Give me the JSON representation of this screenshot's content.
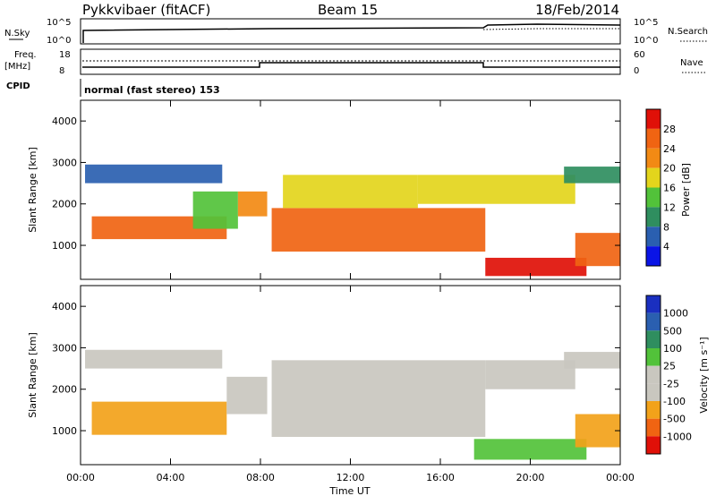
{
  "header": {
    "title": "Pykkvibaer (fitACF)",
    "beam": "Beam 15",
    "date": "18/Feb/2014"
  },
  "top_panels": {
    "nsky_label": "N.Sky",
    "nsky_ticks": [
      "10^5",
      "10^0"
    ],
    "nsearch_label": "N.Search",
    "nsearch_ticks": [
      "10^5",
      "10^0"
    ],
    "freq_label_line1": "Freq.",
    "freq_label_line2": "[MHz]",
    "freq_ticks": [
      "18",
      "8"
    ],
    "nave_label": "Nave",
    "nave_ticks": [
      "60",
      "0"
    ],
    "cpid_label": "CPID",
    "cpid_text": "normal (fast stereo) 153"
  },
  "colors": {
    "power_scale": [
      "#0a14e6",
      "#2a5fb0",
      "#2f8e5f",
      "#52c23a",
      "#e3d51c",
      "#f28a14",
      "#f06412",
      "#e01008"
    ],
    "velocity_scale": [
      "#e01008",
      "#f06412",
      "#f2a21a",
      "#c9c7bf",
      "#c9c7bf",
      "#52c23a",
      "#2f8e5f",
      "#2a5fb0",
      "#1a2fc0"
    ]
  },
  "chart_data": [
    {
      "type": "heatmap",
      "name": "power",
      "ylabel": "Slant Range [km]",
      "ylim": [
        180,
        4500
      ],
      "yticks": [
        "1000",
        "2000",
        "3000",
        "4000"
      ],
      "colorbar_label": "Power [dB]",
      "colorbar_ticks": [
        "4",
        "8",
        "12",
        "16",
        "20",
        "24",
        "28"
      ],
      "regions": [
        {
          "t0": 0.2,
          "t1": 6.3,
          "r0": 2500,
          "r1": 2950,
          "value": 6
        },
        {
          "t0": 0.5,
          "t1": 6.5,
          "r0": 1150,
          "r1": 1700,
          "value": 27
        },
        {
          "t0": 5.0,
          "t1": 7.0,
          "r0": 1400,
          "r1": 2300,
          "value": 14
        },
        {
          "t0": 7.0,
          "t1": 8.3,
          "r0": 1700,
          "r1": 2300,
          "value": 22
        },
        {
          "t0": 8.5,
          "t1": 18.0,
          "r0": 850,
          "r1": 1900,
          "value": 27
        },
        {
          "t0": 9.0,
          "t1": 15.0,
          "r0": 1900,
          "r1": 2700,
          "value": 16
        },
        {
          "t0": 15.0,
          "t1": 22.0,
          "r0": 2000,
          "r1": 2700,
          "value": 17
        },
        {
          "t0": 18.0,
          "t1": 22.5,
          "r0": 260,
          "r1": 700,
          "value": 28
        },
        {
          "t0": 22.0,
          "t1": 24.0,
          "r0": 500,
          "r1": 1300,
          "value": 27
        },
        {
          "t0": 21.5,
          "t1": 24.0,
          "r0": 2500,
          "r1": 2900,
          "value": 8
        }
      ]
    },
    {
      "type": "heatmap",
      "name": "velocity",
      "ylabel": "Slant Range [km]",
      "ylim": [
        180,
        4500
      ],
      "yticks": [
        "1000",
        "2000",
        "3000",
        "4000"
      ],
      "colorbar_label": "Velocity [m s⁻¹]",
      "colorbar_ticks": [
        "1000",
        "500",
        "100",
        "25",
        "-25",
        "-100",
        "-500",
        "-1000"
      ],
      "regions": [
        {
          "t0": 0.2,
          "t1": 6.3,
          "r0": 2500,
          "r1": 2950,
          "value": 0
        },
        {
          "t0": 0.5,
          "t1": 6.5,
          "r0": 900,
          "r1": 1700,
          "value": -200
        },
        {
          "t0": 6.5,
          "t1": 8.3,
          "r0": 1400,
          "r1": 2300,
          "value": 0
        },
        {
          "t0": 8.5,
          "t1": 18.0,
          "r0": 850,
          "r1": 2700,
          "value": 0
        },
        {
          "t0": 18.0,
          "t1": 22.0,
          "r0": 2000,
          "r1": 2700,
          "value": 0
        },
        {
          "t0": 17.5,
          "t1": 22.5,
          "r0": 300,
          "r1": 800,
          "value": 80
        },
        {
          "t0": 22.0,
          "t1": 24.0,
          "r0": 600,
          "r1": 1400,
          "value": -150
        },
        {
          "t0": 21.5,
          "t1": 24.0,
          "r0": 2500,
          "r1": 2900,
          "value": 0
        }
      ]
    }
  ],
  "x_axis": {
    "label": "Time UT",
    "ticks": [
      "00:00",
      "04:00",
      "08:00",
      "12:00",
      "16:00",
      "20:00",
      "00:00"
    ],
    "range_hours": [
      0,
      24
    ]
  }
}
